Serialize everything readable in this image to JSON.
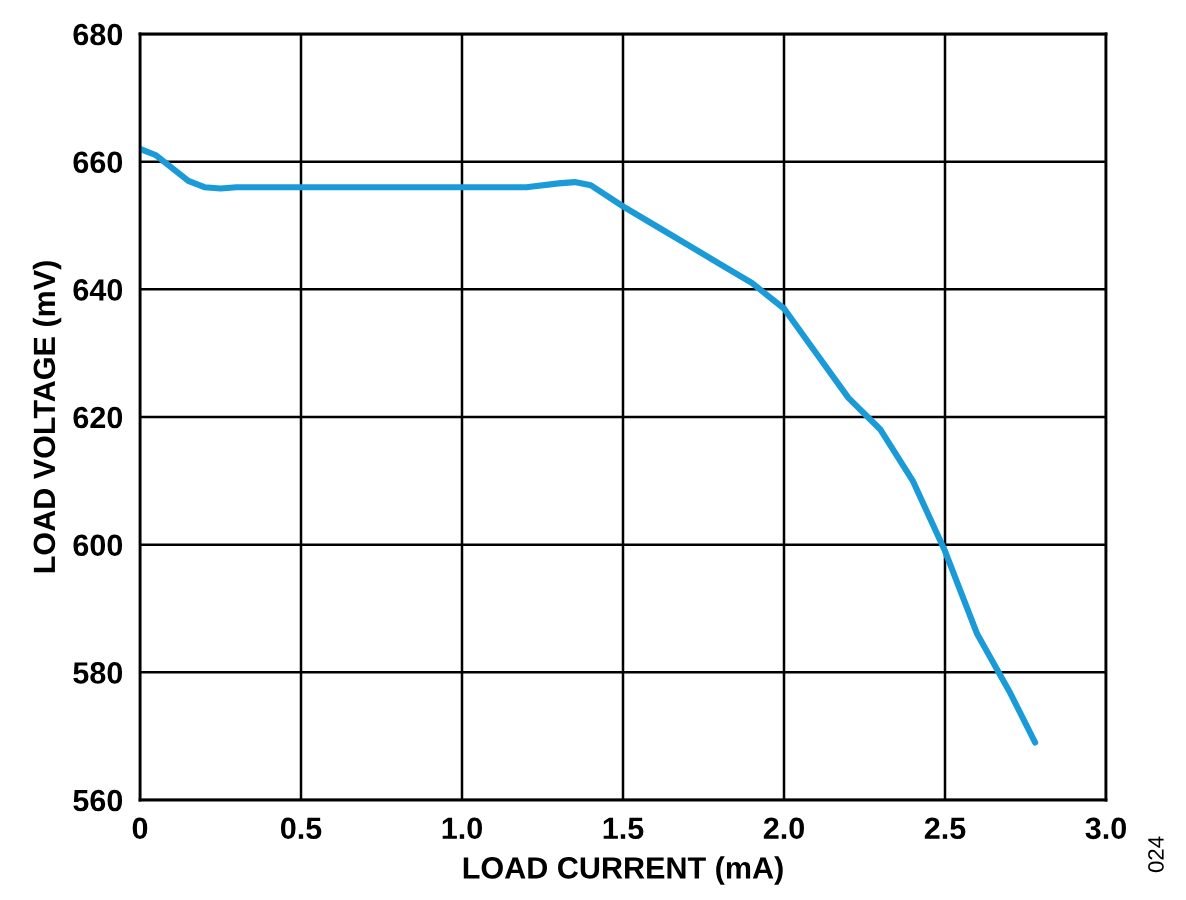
{
  "chart_data": {
    "type": "line",
    "xlabel": "LOAD CURRENT (mA)",
    "ylabel": "LOAD VOLTAGE (mV)",
    "annotations": [
      "024"
    ],
    "series": [
      {
        "color": "#1a9bd7",
        "x": [
          0,
          0.05,
          0.1,
          0.15,
          0.2,
          0.25,
          0.3,
          0.4,
          0.6,
          0.8,
          1.0,
          1.2,
          1.3,
          1.35,
          1.4,
          1.5,
          1.6,
          1.7,
          1.8,
          1.9,
          2.0,
          2.1,
          2.2,
          2.3,
          2.4,
          2.5,
          2.6,
          2.7,
          2.78
        ],
        "values": [
          662,
          661,
          659,
          657,
          656,
          655.8,
          656,
          656,
          656,
          656,
          656,
          656,
          656.6,
          656.8,
          656.3,
          653,
          650,
          647,
          644,
          641,
          637,
          630,
          623,
          618,
          610,
          599,
          586,
          577,
          569
        ]
      }
    ],
    "xlim": [
      0,
      3.0
    ],
    "ylim": [
      560,
      680
    ],
    "xticks": [
      0,
      0.5,
      {
        "value": 1.0,
        "label": "1.0"
      },
      1.5,
      {
        "value": 2.0,
        "label": "2.0"
      },
      2.5,
      {
        "value": 3.0,
        "label": "3.0"
      }
    ],
    "yticks": [
      560,
      580,
      600,
      620,
      640,
      660,
      680
    ],
    "grid": true,
    "legend": false,
    "marker": "none",
    "line_style": "solid"
  }
}
